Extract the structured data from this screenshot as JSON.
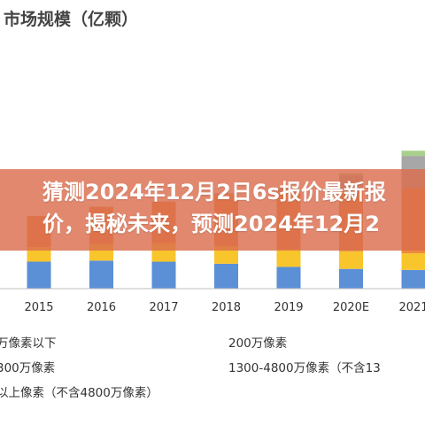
{
  "chart_data": {
    "type": "bar",
    "stacked": true,
    "title": "市场规模（亿颗）",
    "categories": [
      "2015",
      "2016",
      "2017",
      "2018",
      "2019",
      "2020E",
      "2021"
    ],
    "series": [
      {
        "name": "万像素以下",
        "color": "#5b8fd6",
        "values": [
          26,
          27,
          26,
          24,
          21,
          19,
          18
        ]
      },
      {
        "name": "200万像素",
        "color": "#f8c52c",
        "values": [
          14,
          16,
          18,
          17,
          17,
          17,
          16
        ]
      },
      {
        "name": "300万像素",
        "color": "#f4a8a0",
        "values": [
          0,
          0,
          0,
          0,
          0,
          0,
          0
        ]
      },
      {
        "name": "1300-4800万像素（不含13",
        "color": "#ee8a3c",
        "values": [
          30,
          36,
          40,
          50,
          55,
          58,
          63
        ]
      },
      {
        "name": "以上像素（不含4800万像素）",
        "color": "#a7a7a7",
        "values": [
          0,
          0,
          0,
          1,
          3,
          15,
          31
        ]
      },
      {
        "name": "",
        "color": "#a8d08d",
        "values": [
          0,
          0,
          0,
          0,
          1,
          2,
          5
        ]
      }
    ],
    "ylim": [
      0,
      175
    ],
    "grid": false,
    "legend_position": "bottom"
  },
  "legend": {
    "items": [
      {
        "label": "万像素以下",
        "color": "#5b8fd6",
        "swatch": false
      },
      {
        "label": "200万像素",
        "color": "#f8c52c",
        "swatch": true
      },
      {
        "label": "300万像素",
        "color": "#f4a8a0",
        "swatch": false
      },
      {
        "label": "1300-4800万像素（不含13",
        "color": "#ee8a3c",
        "swatch": true
      },
      {
        "label": "以上像素（不含4800万像素）",
        "color": "#a7a7a7",
        "swatch": false
      }
    ]
  },
  "banner": {
    "text": "猜测2024年12月2日6s报价最新报价，揭秘未来，预测2024年12月2"
  }
}
